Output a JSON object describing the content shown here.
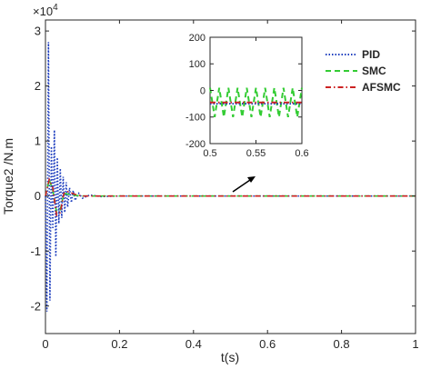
{
  "chart_data": [
    {
      "type": "line",
      "xlabel": "t(s)",
      "ylabel": "Torque2 /N.m",
      "xlim": [
        0,
        1
      ],
      "ylim": [
        -2.5,
        3.2
      ],
      "y_multiplier_label": "×10",
      "y_multiplier_exp": "4",
      "xticks": [
        "0",
        "0.2",
        "0.4",
        "0.6",
        "0.8",
        "1"
      ],
      "xtick_values": [
        0,
        0.2,
        0.4,
        0.6,
        0.8,
        1
      ],
      "yticks": [
        "-2",
        "-1",
        "0",
        "1",
        "2",
        "3"
      ],
      "ytick_values": [
        -2,
        -1,
        0,
        1,
        2,
        3
      ],
      "grid": false,
      "legend_position": "top-right",
      "series": [
        {
          "name": "PID",
          "color": "#1f3fbf",
          "style": "dotted",
          "x": [
            0,
            0.004,
            0.008,
            0.012,
            0.016,
            0.02,
            0.024,
            0.028,
            0.032,
            0.036,
            0.04,
            0.044,
            0.048,
            0.052,
            0.056,
            0.06,
            0.065,
            0.07,
            0.075,
            0.08,
            0.09,
            0.1,
            0.12,
            0.15,
            0.2,
            0.25,
            0.3,
            1.0
          ],
          "y": [
            0,
            -2.1,
            2.8,
            -1.9,
            0.9,
            -0.6,
            1.2,
            -1.1,
            0.7,
            -0.5,
            0.5,
            -0.4,
            0.35,
            -0.3,
            0.25,
            -0.2,
            0.15,
            -0.12,
            0.1,
            -0.08,
            0.05,
            -0.04,
            0.02,
            -0.01,
            0.0,
            0.0,
            0.0,
            0.0
          ]
        },
        {
          "name": "SMC",
          "color": "#33cc33",
          "style": "dashed",
          "x": [
            0,
            0.01,
            0.02,
            0.03,
            0.04,
            0.05,
            0.07,
            0.1,
            0.15,
            0.2,
            1.0
          ],
          "y": [
            0,
            0.3,
            0.1,
            -0.3,
            -0.25,
            0.05,
            0.02,
            0.0,
            0.0,
            0.0,
            0.0
          ]
        },
        {
          "name": "AFSMC",
          "color": "#cc2222",
          "style": "dashdot",
          "x": [
            0,
            0.01,
            0.02,
            0.03,
            0.04,
            0.05,
            0.06,
            0.08,
            0.1,
            0.15,
            0.2,
            1.0
          ],
          "y": [
            0,
            0.3,
            0.15,
            -0.35,
            -0.3,
            0.05,
            0.08,
            0.03,
            0.0,
            0.0,
            0.0,
            0.0
          ]
        }
      ]
    },
    {
      "type": "line",
      "xlim": [
        0.5,
        0.6
      ],
      "ylim": [
        -200,
        200
      ],
      "xticks": [
        "0.5",
        "0.55",
        "0.6"
      ],
      "xtick_values": [
        0.5,
        0.55,
        0.6
      ],
      "yticks": [
        "-200",
        "-100",
        "0",
        "100",
        "200"
      ],
      "ytick_values": [
        -200,
        -100,
        0,
        100,
        200
      ],
      "series": [
        {
          "name": "SMC",
          "color": "#33cc33",
          "style": "dashed",
          "x": [
            0.5,
            0.505,
            0.51,
            0.515,
            0.52,
            0.525,
            0.53,
            0.535,
            0.54,
            0.545,
            0.55,
            0.555,
            0.56,
            0.565,
            0.57,
            0.575,
            0.58,
            0.585,
            0.59,
            0.595,
            0.6
          ],
          "y": [
            10,
            -100,
            10,
            -100,
            10,
            -100,
            10,
            -100,
            10,
            -100,
            10,
            -100,
            10,
            -100,
            10,
            -100,
            10,
            -100,
            10,
            -100,
            10
          ]
        },
        {
          "name": "PID",
          "color": "#1f3fbf",
          "style": "dotted",
          "x": [
            0.5,
            0.6
          ],
          "y": [
            -50,
            -50
          ]
        },
        {
          "name": "AFSMC",
          "color": "#cc2222",
          "style": "dashdot",
          "x": [
            0.5,
            0.6
          ],
          "y": [
            -45,
            -45
          ]
        }
      ]
    }
  ]
}
